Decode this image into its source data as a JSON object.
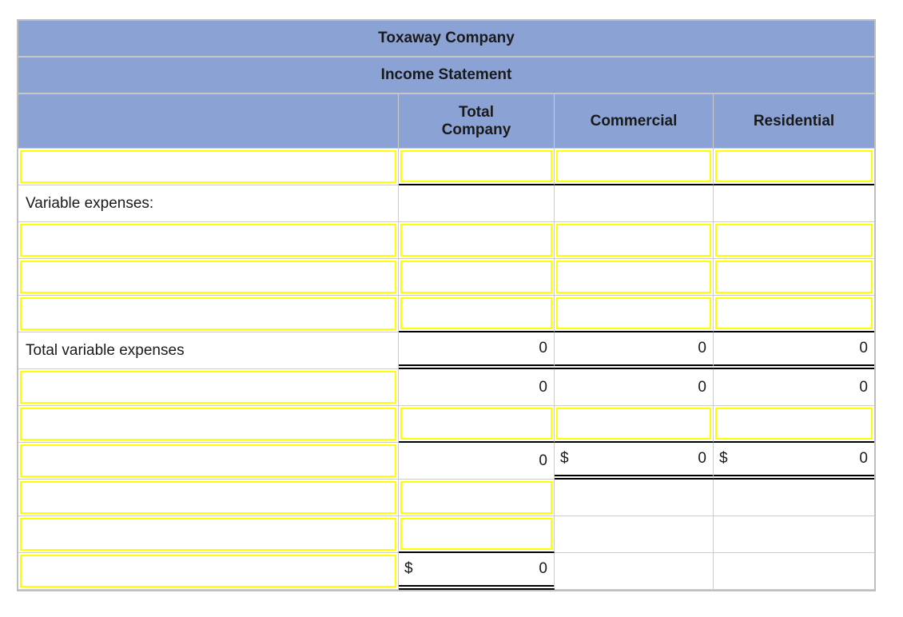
{
  "title": "Toxaway Company",
  "subtitle": "Income Statement",
  "columns": {
    "total": "Total Company",
    "commercial": "Commercial",
    "residential": "Residential"
  },
  "labels": {
    "variable_expenses": "Variable expenses:",
    "total_variable_expenses": "Total variable expenses"
  },
  "currency_symbol": "$",
  "values": {
    "total_variable_expenses": {
      "total": "0",
      "commercial": "0",
      "residential": "0"
    },
    "subtotal_row": {
      "total": "0",
      "commercial": "0",
      "residential": "0"
    },
    "margin_row": {
      "total": "0",
      "commercial": "0",
      "residential": "0"
    },
    "final_total": {
      "total": "0"
    }
  },
  "colors": {
    "header_bg": "#8BA3D4",
    "input_border": "#FFFF00",
    "grid_line": "#CCCCCC",
    "rule_line": "#000000"
  }
}
